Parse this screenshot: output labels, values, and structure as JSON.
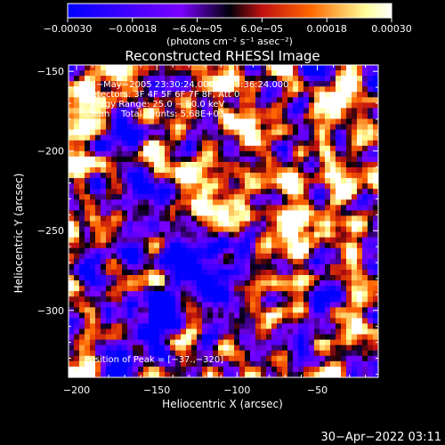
{
  "chart_data": {
    "type": "heatmap",
    "title": "Reconstructed RHESSI Image",
    "xlabel": "Heliocentric X (arcsec)",
    "ylabel": "Heliocentric Y (arcsec)",
    "xlim": [
      -205,
      -12
    ],
    "ylim": [
      -342,
      -146
    ],
    "x_ticks": [
      -200,
      -150,
      -100,
      -50
    ],
    "x_tick_labels": [
      "−200",
      "−150",
      "−100",
      "−50"
    ],
    "y_ticks": [
      -150,
      -200,
      -250,
      -300
    ],
    "y_tick_labels": [
      "−150",
      "−200",
      "−250",
      "−300"
    ],
    "colorbar": {
      "range": [
        -0.0003,
        0.0003
      ],
      "ticks": [
        -0.0003,
        -0.00018,
        -6e-05,
        6e-05,
        0.00018,
        0.0003
      ],
      "tick_labels": [
        "−0.00030",
        "−0.00018",
        "−6.0e−05",
        "6.0e−05",
        "0.00018",
        "0.00030"
      ],
      "unit_text": "(photons cm⁻² s⁻¹ asec⁻²)"
    },
    "annotations": [
      "16−May−2005 23:30:24.000 to 23:36:24.000",
      "Detectors: 3F 4F 5F 6F 7F 8F, Att 0",
      "Energy Range: 25.0 − 50.0 keV",
      "Clean    Total counts: 5.68E+03"
    ],
    "peak_label": "Position of Peak = [−37.,−320]",
    "peak": [
      -37,
      -320
    ],
    "colormap": [
      "#0000ff",
      "#7a00ff",
      "#00000a",
      "#c01010",
      "#ff6600",
      "#ffff99",
      "#ffffff"
    ]
  },
  "footer": {
    "timestamp": "30−Apr−2022 03:11"
  }
}
